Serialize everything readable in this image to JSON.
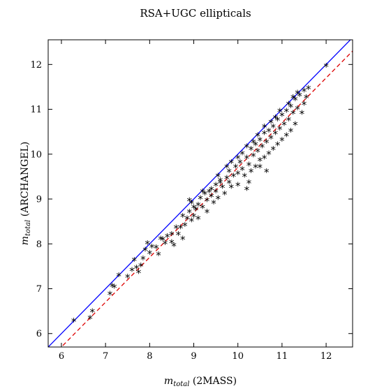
{
  "chart_data": {
    "type": "scatter",
    "title": "RSA+UGC ellipticals",
    "xlabel_var": "m",
    "xlabel_sub": "total",
    "xlabel_text": " (2MASS)",
    "ylabel_var": "m",
    "ylabel_sub": "total",
    "ylabel_text": " (ARCHANGEL)",
    "xlim": [
      5.7,
      12.6
    ],
    "ylim": [
      5.7,
      12.55
    ],
    "xticks": [
      6,
      7,
      8,
      9,
      10,
      11,
      12
    ],
    "yticks": [
      6,
      7,
      8,
      9,
      10,
      11,
      12
    ],
    "grid": false,
    "lines": [
      {
        "kind": "one-to-one",
        "style": "solid",
        "color": "#0000ff",
        "slope": 1,
        "intercept": 0
      },
      {
        "kind": "fit",
        "style": "dashed",
        "color": "#dd0000",
        "slope": 1,
        "intercept": -0.3
      }
    ],
    "points": [
      [
        6.28,
        6.27
      ],
      [
        6.65,
        6.33
      ],
      [
        6.7,
        6.48
      ],
      [
        7.1,
        6.87
      ],
      [
        7.15,
        7.05
      ],
      [
        7.2,
        7.02
      ],
      [
        7.3,
        7.28
      ],
      [
        7.5,
        7.25
      ],
      [
        7.6,
        7.4
      ],
      [
        7.65,
        7.62
      ],
      [
        7.7,
        7.45
      ],
      [
        7.75,
        7.35
      ],
      [
        7.8,
        7.5
      ],
      [
        7.85,
        7.65
      ],
      [
        7.9,
        7.85
      ],
      [
        7.95,
        8.0
      ],
      [
        8.0,
        7.78
      ],
      [
        8.05,
        7.92
      ],
      [
        8.15,
        7.9
      ],
      [
        8.2,
        7.75
      ],
      [
        8.25,
        8.1
      ],
      [
        8.3,
        8.08
      ],
      [
        8.35,
        8.0
      ],
      [
        8.4,
        8.15
      ],
      [
        8.5,
        8.2
      ],
      [
        8.5,
        8.02
      ],
      [
        8.55,
        7.95
      ],
      [
        8.6,
        8.35
      ],
      [
        8.65,
        8.2
      ],
      [
        8.7,
        8.35
      ],
      [
        8.75,
        8.6
      ],
      [
        8.75,
        8.1
      ],
      [
        8.8,
        8.4
      ],
      [
        8.85,
        8.55
      ],
      [
        8.9,
        8.7
      ],
      [
        8.9,
        8.95
      ],
      [
        8.95,
        8.5
      ],
      [
        9.0,
        8.8
      ],
      [
        9.0,
        8.6
      ],
      [
        9.05,
        8.75
      ],
      [
        9.1,
        8.55
      ],
      [
        9.1,
        8.85
      ],
      [
        9.15,
        9.0
      ],
      [
        9.2,
        8.8
      ],
      [
        9.25,
        9.1
      ],
      [
        9.3,
        8.95
      ],
      [
        9.3,
        8.7
      ],
      [
        9.35,
        9.15
      ],
      [
        9.4,
        9.05
      ],
      [
        9.45,
        8.9
      ],
      [
        9.5,
        9.3
      ],
      [
        9.5,
        9.15
      ],
      [
        9.55,
        9.0
      ],
      [
        9.6,
        9.4
      ],
      [
        9.65,
        9.25
      ],
      [
        9.7,
        9.1
      ],
      [
        9.75,
        9.45
      ],
      [
        9.8,
        9.35
      ],
      [
        9.8,
        9.6
      ],
      [
        9.85,
        9.25
      ],
      [
        9.9,
        9.5
      ],
      [
        9.95,
        9.7
      ],
      [
        10.0,
        9.55
      ],
      [
        10.0,
        9.3
      ],
      [
        10.05,
        9.8
      ],
      [
        10.1,
        9.65
      ],
      [
        10.1,
        10.0
      ],
      [
        10.15,
        9.5
      ],
      [
        10.2,
        9.9
      ],
      [
        10.2,
        9.2
      ],
      [
        10.25,
        9.75
      ],
      [
        10.3,
        10.1
      ],
      [
        10.3,
        9.6
      ],
      [
        10.35,
        9.95
      ],
      [
        10.4,
        10.2
      ],
      [
        10.4,
        9.7
      ],
      [
        10.45,
        10.05
      ],
      [
        10.5,
        10.3
      ],
      [
        10.5,
        9.85
      ],
      [
        10.55,
        10.15
      ],
      [
        10.6,
        10.45
      ],
      [
        10.6,
        9.9
      ],
      [
        10.65,
        10.25
      ],
      [
        10.7,
        10.5
      ],
      [
        10.7,
        10.0
      ],
      [
        10.75,
        10.35
      ],
      [
        10.8,
        10.6
      ],
      [
        10.8,
        10.1
      ],
      [
        10.85,
        10.45
      ],
      [
        10.9,
        10.75
      ],
      [
        10.9,
        10.2
      ],
      [
        10.95,
        10.55
      ],
      [
        11.0,
        10.85
      ],
      [
        11.0,
        10.3
      ],
      [
        11.05,
        10.65
      ],
      [
        11.1,
        10.95
      ],
      [
        11.1,
        10.4
      ],
      [
        11.15,
        10.75
      ],
      [
        11.2,
        11.05
      ],
      [
        11.2,
        10.5
      ],
      [
        11.25,
        10.9
      ],
      [
        11.3,
        11.2
      ],
      [
        11.3,
        10.65
      ],
      [
        11.35,
        11.0
      ],
      [
        11.4,
        11.3
      ],
      [
        11.45,
        10.9
      ],
      [
        11.5,
        11.4
      ],
      [
        11.5,
        11.1
      ],
      [
        11.55,
        11.25
      ],
      [
        11.6,
        11.45
      ],
      [
        12.0,
        11.95
      ],
      [
        10.65,
        9.6
      ],
      [
        10.25,
        9.35
      ],
      [
        10.5,
        9.7
      ],
      [
        9.4,
        9.2
      ],
      [
        9.6,
        9.35
      ],
      [
        10.0,
        9.9
      ],
      [
        10.35,
        10.25
      ],
      [
        10.75,
        10.7
      ],
      [
        10.95,
        10.95
      ],
      [
        11.25,
        11.25
      ],
      [
        9.75,
        9.7
      ],
      [
        9.55,
        9.5
      ],
      [
        9.2,
        9.15
      ],
      [
        8.95,
        8.9
      ],
      [
        10.45,
        10.4
      ],
      [
        10.85,
        10.8
      ],
      [
        11.15,
        11.1
      ],
      [
        11.35,
        11.35
      ],
      [
        10.6,
        10.6
      ],
      [
        10.2,
        10.15
      ],
      [
        9.85,
        9.8
      ]
    ]
  }
}
